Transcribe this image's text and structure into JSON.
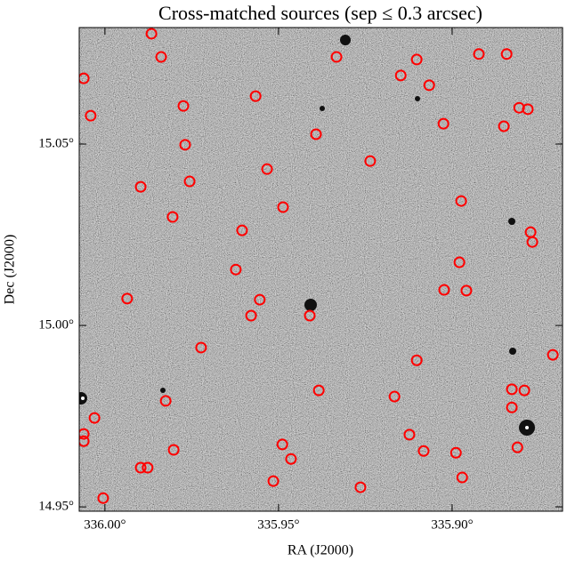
{
  "chart_data": {
    "type": "scatter",
    "title": "Cross-matched sources (sep ≤ 0.3 arcsec)",
    "x_label": "RA (J2000)",
    "y_label": "Dec (J2000)",
    "color": "red",
    "xlim": [
      336.0074,
      335.8682
    ],
    "ylim": [
      14.9488,
      15.0821
    ],
    "xticks": [
      {
        "value": 336.0,
        "label": "336.00°"
      },
      {
        "value": 335.95,
        "label": "335.95°"
      },
      {
        "value": 335.9,
        "label": "335.90°"
      }
    ],
    "yticks": [
      {
        "value": 14.95,
        "label": "14.95°"
      },
      {
        "value": 15.0,
        "label": "15.00°"
      },
      {
        "value": 15.05,
        "label": "15.05°"
      }
    ],
    "x": [
      335.9866,
      335.9838,
      336.0061,
      336.0041,
      335.9774,
      335.9566,
      335.9333,
      335.9148,
      335.9102,
      335.9066,
      335.8923,
      335.8843,
      335.8807,
      335.8782,
      335.9025,
      335.8851,
      335.9392,
      335.9769,
      335.9236,
      335.9533,
      335.9756,
      335.9897,
      335.9487,
      335.8974,
      335.9805,
      335.9605,
      335.8774,
      335.8769,
      335.8979,
      335.9623,
      335.9023,
      335.8959,
      335.9936,
      335.9554,
      335.9579,
      335.941,
      335.9723,
      335.9102,
      335.871,
      335.9384,
      335.9166,
      335.8828,
      335.8792,
      335.9825,
      335.8828,
      336.003,
      336.0061,
      336.0061,
      335.9123,
      335.9489,
      335.9464,
      335.9802,
      335.9082,
      335.8989,
      335.8812,
      335.9897,
      335.9877,
      335.9515,
      335.8971,
      335.9264,
      336.0005
    ],
    "values": [
      15.0804,
      15.074,
      15.0681,
      15.0578,
      15.0605,
      15.0632,
      15.074,
      15.0689,
      15.0733,
      15.0662,
      15.0748,
      15.0748,
      15.06,
      15.0596,
      15.0556,
      15.0549,
      15.0527,
      15.0498,
      15.0453,
      15.0431,
      15.0397,
      15.0382,
      15.0326,
      15.0343,
      15.0299,
      15.0262,
      15.0257,
      15.023,
      15.0174,
      15.0154,
      15.0098,
      15.0096,
      15.0074,
      15.0071,
      15.0027,
      15.0027,
      14.9939,
      14.9904,
      14.9919,
      14.9821,
      14.9804,
      14.9824,
      14.9821,
      14.9792,
      14.9774,
      14.9745,
      14.9701,
      14.9681,
      14.9699,
      14.9672,
      14.9632,
      14.9657,
      14.9654,
      14.9649,
      14.9664,
      14.9608,
      14.9608,
      14.9571,
      14.9581,
      14.9554,
      14.9524
    ]
  }
}
